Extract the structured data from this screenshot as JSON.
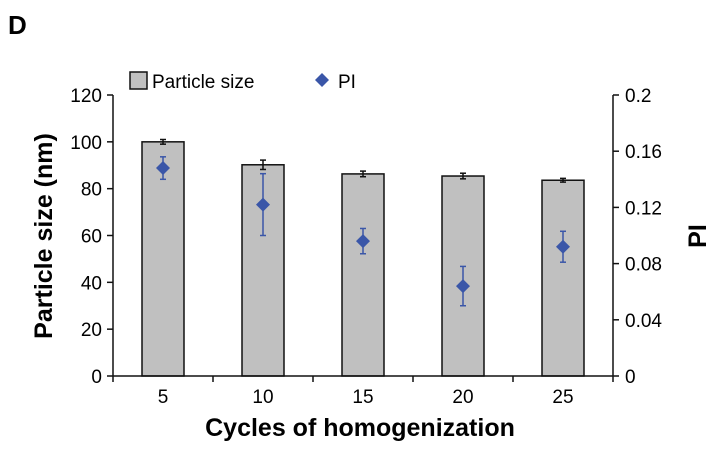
{
  "panel_label": "D",
  "chart_data": {
    "type": "bar",
    "categories": [
      "5",
      "10",
      "15",
      "20",
      "25"
    ],
    "xlabel": "Cycles of homogenization",
    "series": [
      {
        "name": "Particle size",
        "axis": "left",
        "kind": "bar",
        "color": "#c0c0c0",
        "values": [
          100.0,
          90.2,
          86.3,
          85.4,
          83.6
        ],
        "errors": [
          1.0,
          2.0,
          1.2,
          1.2,
          0.8
        ]
      },
      {
        "name": "PI",
        "axis": "right",
        "kind": "scatter",
        "marker": "diamond",
        "color": "#3a56a8",
        "values": [
          0.148,
          0.122,
          0.096,
          0.064,
          0.092
        ],
        "errors": [
          0.008,
          0.022,
          0.009,
          0.014,
          0.011
        ]
      }
    ],
    "y_left": {
      "label": "Particle size (nm)",
      "lim": [
        0,
        120
      ],
      "ticks": [
        "0",
        "20",
        "40",
        "60",
        "80",
        "100",
        "120"
      ]
    },
    "y_right": {
      "label": "PI",
      "lim": [
        0,
        0.2
      ],
      "ticks": [
        "0",
        "0.04",
        "0.08",
        "0.12",
        "0.16",
        "0.2"
      ]
    },
    "legend_position": "top",
    "grid": false
  }
}
